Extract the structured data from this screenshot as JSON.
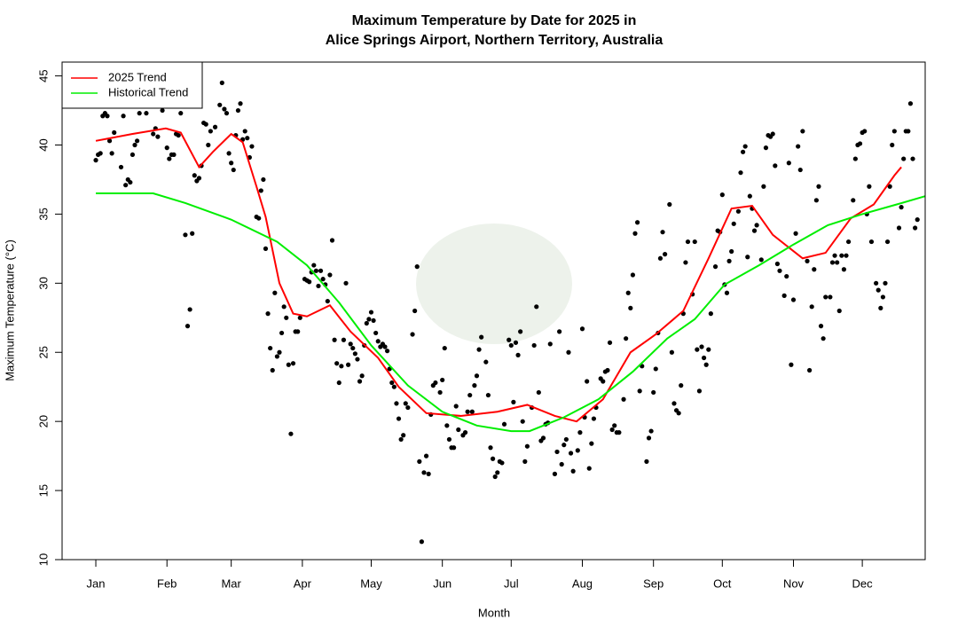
{
  "chart_data": {
    "type": "scatter",
    "title": [
      "Maximum Temperature by Date for 2025 in",
      "Alice Springs Airport, Northern Territory, Australia"
    ],
    "xlabel": "Month",
    "ylabel": "Maximum Temperature (°C)",
    "xlim": [
      -13.7,
      362.4
    ],
    "ylim": [
      10,
      46
    ],
    "xticks": [
      {
        "value": 1,
        "label": "Jan"
      },
      {
        "value": 32,
        "label": "Feb"
      },
      {
        "value": 60,
        "label": "Mar"
      },
      {
        "value": 91,
        "label": "Apr"
      },
      {
        "value": 121,
        "label": "May"
      },
      {
        "value": 152,
        "label": "Jun"
      },
      {
        "value": 182,
        "label": "Jul"
      },
      {
        "value": 213,
        "label": "Aug"
      },
      {
        "value": 244,
        "label": "Sep"
      },
      {
        "value": 274,
        "label": "Oct"
      },
      {
        "value": 305,
        "label": "Nov"
      },
      {
        "value": 335,
        "label": "Dec"
      }
    ],
    "yticks": [
      10,
      15,
      20,
      25,
      30,
      35,
      40,
      45
    ],
    "legend": "top-left",
    "points": {
      "color": "#000000",
      "x": [
        1,
        2,
        3,
        4,
        5,
        6,
        7,
        8,
        9,
        12,
        13,
        14,
        15,
        16,
        17,
        18,
        19,
        20,
        23,
        26,
        27,
        28,
        30,
        32,
        33,
        34,
        35,
        36,
        37,
        38,
        40,
        41,
        42,
        43,
        44,
        45,
        46,
        47,
        48,
        49,
        50,
        51,
        53,
        55,
        56,
        57,
        58,
        59,
        60,
        61,
        62,
        63,
        64,
        65,
        66,
        67,
        68,
        69,
        71,
        72,
        73,
        74,
        75,
        76,
        77,
        78,
        79,
        80,
        81,
        82,
        83,
        84,
        85,
        86,
        87,
        88,
        89,
        90,
        92,
        93,
        94,
        95,
        96,
        97,
        98,
        99,
        100,
        101,
        102,
        103,
        104,
        105,
        106,
        107,
        108,
        109,
        110,
        111,
        112,
        113,
        114,
        115,
        116,
        117,
        118,
        119,
        120,
        121,
        122,
        123,
        124,
        125,
        126,
        127,
        128,
        129,
        130,
        131,
        132,
        133,
        134,
        135,
        136,
        137,
        139,
        140,
        141,
        142,
        143,
        144,
        145,
        146,
        147,
        148,
        149,
        151,
        152,
        153,
        154,
        155,
        156,
        157,
        158,
        159,
        161,
        162,
        163,
        164,
        165,
        166,
        167,
        168,
        169,
        171,
        172,
        173,
        174,
        175,
        176,
        177,
        178,
        179,
        181,
        182,
        183,
        184,
        185,
        186,
        187,
        188,
        189,
        191,
        192,
        193,
        194,
        195,
        196,
        197,
        198,
        199,
        201,
        202,
        203,
        204,
        205,
        206,
        207,
        208,
        209,
        211,
        212,
        213,
        214,
        215,
        216,
        217,
        218,
        219,
        221,
        222,
        223,
        224,
        225,
        226,
        227,
        228,
        229,
        231,
        232,
        233,
        234,
        235,
        236,
        237,
        238,
        239,
        241,
        242,
        243,
        244,
        245,
        246,
        247,
        248,
        249,
        251,
        252,
        253,
        254,
        255,
        256,
        257,
        258,
        259,
        261,
        262,
        263,
        264,
        265,
        266,
        267,
        268,
        269,
        271,
        272,
        273,
        274,
        275,
        276,
        277,
        278,
        279,
        281,
        282,
        283,
        284,
        285,
        286,
        287,
        288,
        289,
        291,
        292,
        293,
        294,
        295,
        296,
        297,
        298,
        299,
        301,
        302,
        303,
        304,
        305,
        306,
        307,
        308,
        309,
        311,
        312,
        313,
        314,
        315,
        316,
        317,
        318,
        319,
        321,
        322,
        323,
        324,
        325,
        326,
        327,
        328,
        329,
        331,
        332,
        333,
        334,
        335,
        336,
        337,
        338,
        339,
        341,
        342,
        343,
        344,
        345,
        346,
        347,
        348,
        349,
        351,
        352,
        353,
        354,
        355,
        356,
        357,
        358,
        359
      ],
      "y": [
        38.9,
        39.3,
        39.4,
        42.1,
        42.3,
        42.1,
        40.3,
        39.4,
        40.9,
        38.4,
        42.1,
        37.1,
        37.5,
        37.3,
        39.3,
        40.0,
        40.3,
        42.3,
        42.3,
        40.8,
        41.2,
        40.6,
        42.5,
        39.8,
        39.0,
        39.3,
        39.3,
        40.8,
        40.7,
        42.3,
        33.5,
        26.9,
        28.1,
        33.6,
        37.8,
        37.4,
        37.6,
        38.5,
        41.6,
        41.5,
        40.0,
        41.0,
        41.3,
        42.9,
        44.5,
        42.6,
        42.3,
        39.4,
        38.7,
        38.2,
        40.7,
        42.5,
        43.0,
        40.4,
        41.0,
        40.5,
        39.1,
        39.9,
        34.8,
        34.7,
        36.7,
        37.5,
        32.5,
        27.8,
        25.3,
        23.7,
        29.3,
        24.7,
        25.0,
        26.4,
        28.3,
        27.5,
        24.1,
        19.1,
        24.2,
        26.5,
        26.5,
        27.5,
        30.3,
        30.2,
        30.1,
        30.8,
        31.3,
        30.9,
        29.8,
        30.9,
        30.3,
        29.9,
        28.7,
        30.6,
        33.1,
        25.9,
        24.2,
        22.8,
        24.0,
        25.9,
        30.0,
        24.1,
        25.6,
        25.3,
        24.9,
        24.5,
        22.9,
        23.3,
        25.5,
        27.1,
        27.4,
        27.9,
        27.3,
        26.4,
        25.8,
        25.4,
        25.6,
        25.4,
        25.1,
        23.8,
        22.8,
        22.5,
        21.3,
        20.2,
        18.7,
        19.0,
        21.3,
        21.0,
        26.3,
        28.0,
        31.2,
        17.1,
        11.3,
        16.3,
        17.5,
        16.2,
        20.5,
        22.6,
        22.8,
        22.1,
        23.0,
        25.3,
        19.7,
        18.7,
        18.1,
        18.1,
        21.1,
        19.4,
        19.0,
        19.2,
        20.7,
        21.9,
        20.7,
        22.6,
        23.3,
        25.2,
        26.1,
        24.3,
        21.9,
        18.1,
        17.3,
        16.0,
        16.3,
        17.1,
        17.0,
        19.8,
        25.9,
        25.5,
        21.4,
        25.7,
        24.8,
        26.5,
        20.0,
        17.1,
        18.2,
        21.0,
        25.5,
        28.3,
        22.1,
        18.6,
        18.8,
        19.8,
        19.9,
        25.6,
        16.2,
        17.8,
        26.5,
        16.9,
        18.3,
        18.7,
        25.0,
        17.7,
        16.4,
        17.9,
        19.2,
        26.7,
        20.3,
        22.9,
        16.6,
        18.4,
        20.2,
        21.0,
        23.1,
        22.9,
        23.6,
        23.7,
        25.7,
        19.4,
        19.7,
        19.2,
        19.2,
        21.6,
        26.0,
        29.3,
        28.2,
        30.6,
        33.6,
        34.4,
        22.2,
        24.0,
        17.1,
        18.8,
        19.3,
        22.1,
        23.8,
        26.4,
        31.8,
        33.7,
        32.1,
        35.7,
        25.0,
        21.3,
        20.8,
        20.6,
        22.6,
        27.8,
        31.5,
        33.0,
        29.2,
        33.0,
        25.2,
        22.2,
        25.4,
        24.6,
        24.1,
        25.2,
        27.8,
        31.2,
        33.8,
        33.7,
        36.4,
        29.9,
        29.3,
        31.6,
        32.3,
        34.3,
        35.2,
        38.0,
        39.5,
        39.9,
        31.9,
        36.3,
        35.4,
        33.8,
        34.2,
        31.7,
        37.0,
        39.8,
        40.7,
        40.6,
        40.8,
        38.5,
        31.4,
        30.9,
        29.1,
        30.5,
        38.7,
        24.1,
        28.8,
        33.6,
        39.9,
        38.2,
        41.0,
        31.6,
        23.7,
        28.3,
        31.0,
        36.0,
        37.0,
        26.9,
        26.0,
        29.0,
        29.0,
        31.5,
        32.0,
        31.5,
        28.0,
        32.0,
        31.0,
        32.0,
        33.0,
        36.0,
        39.0,
        40.0,
        40.1,
        40.9,
        41.0,
        35.0,
        37.0,
        33.0,
        30.0,
        29.5,
        28.2,
        29.0,
        30.0,
        33.0,
        37.0,
        40.0,
        41.0,
        34.0,
        35.5,
        39.0,
        41.0,
        41.0,
        43.0,
        39.0,
        34.0,
        34.6
      ]
    },
    "series": [
      {
        "name": "2025 Trend",
        "color": "#ff0000",
        "x": [
          1,
          17,
          31.5,
          38,
          46,
          52,
          60,
          65,
          71,
          75,
          81,
          87,
          93,
          103,
          112,
          124,
          133,
          145,
          160,
          176,
          189,
          201,
          210.5,
          222,
          234,
          245,
          257,
          268,
          278,
          287,
          296,
          309,
          319,
          330,
          340,
          349,
          352
        ],
        "values": [
          40.3,
          40.8,
          41.2,
          40.9,
          38.4,
          39.5,
          40.8,
          40.2,
          37.0,
          34.8,
          30.0,
          27.8,
          27.6,
          28.4,
          26.5,
          24.6,
          22.5,
          20.6,
          20.4,
          20.7,
          21.2,
          20.4,
          20.0,
          21.6,
          25.0,
          26.3,
          28.0,
          31.8,
          35.4,
          35.6,
          33.5,
          31.8,
          32.2,
          34.7,
          35.7,
          37.8,
          38.4
        ]
      },
      {
        "name": "Historical Trend",
        "color": "#00ee00",
        "x": [
          1,
          17,
          26,
          40,
          60,
          80,
          93,
          107,
          121,
          137,
          152,
          167,
          182,
          190,
          205,
          220,
          235,
          250,
          262,
          275,
          290,
          305,
          320,
          335,
          350,
          362.4
        ],
        "values": [
          36.5,
          36.5,
          36.5,
          35.8,
          34.6,
          33.0,
          31.3,
          28.6,
          25.5,
          22.6,
          20.7,
          19.7,
          19.3,
          19.3,
          20.3,
          21.6,
          23.6,
          26.0,
          27.4,
          29.9,
          31.3,
          32.8,
          34.2,
          35.0,
          35.7,
          36.3
        ]
      }
    ]
  }
}
